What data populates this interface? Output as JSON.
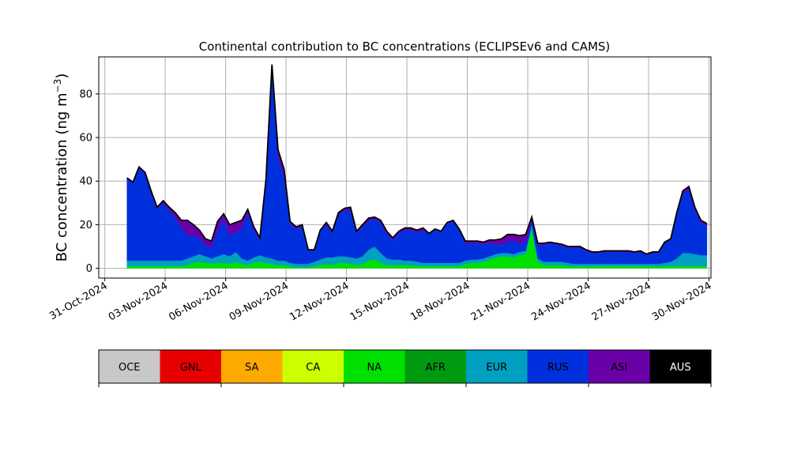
{
  "chart_data": {
    "type": "area",
    "stacked": true,
    "title": "Continental contribution to BC concentrations (ECLIPSEv6 and CAMS)",
    "ylabel_main": "BC concentration (ng m",
    "ylabel_sup": "−3",
    "ylabel_close": ")",
    "xlabel": "",
    "ylim": [
      -4.5,
      97
    ],
    "xlim": [
      -0.3,
      30.1
    ],
    "y_ticks": [
      0,
      20,
      40,
      60,
      80
    ],
    "y_tick_labels": [
      "0",
      "20",
      "40",
      "60",
      "80"
    ],
    "x_ticks": [
      0,
      3,
      6,
      9,
      12,
      15,
      18,
      21,
      24,
      27,
      30
    ],
    "x_tick_labels": [
      "31-Oct-2024",
      "03-Nov-2024",
      "06-Nov-2024",
      "09-Nov-2024",
      "12-Nov-2024",
      "15-Nov-2024",
      "18-Nov-2024",
      "21-Nov-2024",
      "24-Nov-2024",
      "27-Nov-2024",
      "30-Nov-2024"
    ],
    "grid": true,
    "x_unit": "days since 31-Oct-2024",
    "x": [
      1.1,
      1.4,
      1.7,
      2.0,
      2.3,
      2.6,
      2.9,
      3.2,
      3.5,
      3.8,
      4.1,
      4.4,
      4.7,
      5.0,
      5.3,
      5.6,
      5.9,
      6.2,
      6.5,
      6.8,
      7.1,
      7.4,
      7.7,
      8.0,
      8.3,
      8.6,
      8.9,
      9.2,
      9.5,
      9.8,
      10.1,
      10.4,
      10.7,
      11.0,
      11.3,
      11.6,
      11.9,
      12.2,
      12.5,
      12.8,
      13.1,
      13.4,
      13.7,
      14.0,
      14.3,
      14.6,
      14.9,
      15.2,
      15.5,
      15.8,
      16.1,
      16.4,
      16.7,
      17.0,
      17.3,
      17.6,
      17.9,
      18.2,
      18.5,
      18.8,
      19.1,
      19.4,
      19.7,
      20.0,
      20.3,
      20.6,
      20.9,
      21.2,
      21.5,
      21.8,
      22.1,
      22.4,
      22.7,
      23.0,
      23.3,
      23.6,
      23.9,
      24.2,
      24.5,
      24.8,
      25.1,
      25.4,
      25.7,
      26.0,
      26.3,
      26.6,
      26.9,
      27.2,
      27.5,
      27.8,
      28.1,
      28.4,
      28.7,
      29.0,
      29.3,
      29.6,
      29.9
    ],
    "series": [
      {
        "name": "NA",
        "color": "#00e000",
        "values": [
          1.0,
          1.0,
          1.0,
          1.0,
          1.0,
          1.0,
          1.0,
          1.0,
          1.0,
          1.0,
          1.5,
          2.5,
          3.0,
          2.5,
          2.0,
          2.5,
          2.5,
          2.0,
          3.0,
          2.0,
          1.5,
          2.5,
          3.0,
          2.5,
          2.0,
          1.5,
          1.5,
          1.0,
          0.5,
          0.5,
          0.5,
          1.0,
          1.5,
          2.0,
          1.5,
          2.5,
          2.5,
          2.0,
          1.5,
          2.0,
          3.5,
          4.0,
          2.5,
          1.5,
          1.5,
          1.5,
          1.5,
          1.5,
          1.0,
          1.0,
          1.0,
          1.0,
          1.0,
          1.0,
          1.0,
          1.0,
          2.0,
          2.5,
          2.5,
          3.0,
          4.0,
          5.0,
          5.5,
          5.5,
          5.0,
          6.0,
          6.5,
          18.0,
          3.0,
          1.5,
          1.5,
          1.5,
          1.5,
          1.0,
          1.0,
          1.0,
          1.0,
          1.0,
          1.0,
          1.0,
          1.0,
          1.0,
          1.0,
          1.0,
          1.0,
          1.0,
          1.0,
          1.0,
          1.0,
          1.0,
          1.0,
          1.0,
          1.0,
          1.0,
          1.0,
          1.0,
          1.0
        ]
      },
      {
        "name": "EUR",
        "color": "#00a0c0",
        "values": [
          2.5,
          2.5,
          2.5,
          2.5,
          2.5,
          2.5,
          2.5,
          2.5,
          2.5,
          2.5,
          3.0,
          3.0,
          3.5,
          3.0,
          2.5,
          3.0,
          4.0,
          3.5,
          4.5,
          2.5,
          2.0,
          2.5,
          3.0,
          2.5,
          2.5,
          2.0,
          2.0,
          1.5,
          1.5,
          1.5,
          1.5,
          2.0,
          2.5,
          3.0,
          3.5,
          3.0,
          3.0,
          3.0,
          3.0,
          3.5,
          5.0,
          6.0,
          4.5,
          3.0,
          2.5,
          2.5,
          2.0,
          2.0,
          2.0,
          1.5,
          1.5,
          1.5,
          1.5,
          1.5,
          1.5,
          1.5,
          1.5,
          1.5,
          1.5,
          1.5,
          1.5,
          1.5,
          1.5,
          1.5,
          1.5,
          1.5,
          1.5,
          2.0,
          1.5,
          1.5,
          1.5,
          1.5,
          1.5,
          1.5,
          1.0,
          1.0,
          1.0,
          1.0,
          1.0,
          1.0,
          1.0,
          1.0,
          1.0,
          1.0,
          1.0,
          1.0,
          1.0,
          1.0,
          1.0,
          1.5,
          2.0,
          3.5,
          6.0,
          6.0,
          5.5,
          5.0,
          5.0
        ]
      },
      {
        "name": "RUS",
        "color": "#0030dd",
        "values": [
          37.5,
          35.5,
          42.5,
          40.0,
          31.0,
          23.5,
          26.5,
          23.0,
          20.0,
          15.0,
          10.5,
          9.5,
          7.5,
          5.0,
          5.0,
          12.0,
          16.0,
          9.5,
          9.0,
          14.0,
          22.0,
          13.0,
          7.0,
          34.0,
          86.5,
          47.0,
          39.0,
          18.0,
          16.0,
          17.5,
          6.0,
          5.0,
          13.0,
          15.0,
          11.0,
          19.0,
          21.0,
          22.0,
          11.5,
          13.5,
          13.5,
          12.5,
          14.0,
          11.5,
          9.0,
          12.0,
          14.0,
          14.0,
          13.5,
          15.0,
          13.0,
          15.0,
          14.0,
          18.0,
          19.0,
          15.0,
          8.0,
          7.5,
          7.5,
          6.5,
          6.0,
          4.5,
          3.5,
          5.5,
          6.0,
          4.0,
          4.0,
          2.0,
          6.0,
          7.5,
          8.5,
          8.0,
          7.5,
          7.0,
          7.5,
          7.5,
          6.0,
          5.0,
          5.0,
          5.5,
          5.5,
          5.5,
          5.5,
          5.5,
          5.0,
          5.5,
          4.0,
          5.0,
          5.0,
          9.0,
          10.0,
          20.0,
          27.0,
          29.0,
          20.0,
          15.0,
          13.5
        ]
      },
      {
        "name": "ASI",
        "color": "#6a00a8",
        "values": [
          0.5,
          0.5,
          0.5,
          0.5,
          1.0,
          1.0,
          1.0,
          1.5,
          2.0,
          3.5,
          7.0,
          5.0,
          3.5,
          3.0,
          3.0,
          4.0,
          2.5,
          5.0,
          4.5,
          3.5,
          1.5,
          1.0,
          1.0,
          1.5,
          2.5,
          4.0,
          3.0,
          1.0,
          1.0,
          0.5,
          0.5,
          0.5,
          0.5,
          1.0,
          1.0,
          1.0,
          1.0,
          1.0,
          1.0,
          1.0,
          1.0,
          1.0,
          1.0,
          1.0,
          1.0,
          1.0,
          1.0,
          1.0,
          1.0,
          1.0,
          0.5,
          0.5,
          0.5,
          0.5,
          0.5,
          0.5,
          1.0,
          1.0,
          1.0,
          1.0,
          1.5,
          2.0,
          3.0,
          3.0,
          3.0,
          3.5,
          3.5,
          1.5,
          1.0,
          1.0,
          0.5,
          0.5,
          0.5,
          0.5,
          0.5,
          0.5,
          0.5,
          0.5,
          0.5,
          0.5,
          0.5,
          0.5,
          0.5,
          0.5,
          0.5,
          0.5,
          0.5,
          0.5,
          0.5,
          0.5,
          0.5,
          1.0,
          1.5,
          1.5,
          1.5,
          1.0,
          1.0
        ]
      }
    ],
    "colorbar": {
      "entries": [
        {
          "label": "OCE",
          "color": "#c8c8c8"
        },
        {
          "label": "GNL",
          "color": "#e60000"
        },
        {
          "label": "SA",
          "color": "#ffaa00"
        },
        {
          "label": "CA",
          "color": "#ccff00"
        },
        {
          "label": "NA",
          "color": "#00e000"
        },
        {
          "label": "AFR",
          "color": "#009a10"
        },
        {
          "label": "EUR",
          "color": "#00a0c0"
        },
        {
          "label": "RUS",
          "color": "#0030dd"
        },
        {
          "label": "ASI",
          "color": "#6a00a8"
        },
        {
          "label": "AUS",
          "color": "#000000"
        }
      ],
      "label_color_dark": "#000000",
      "label_color_light": "#ffffff"
    },
    "total_line_color": "#000000",
    "grid_color": "#b0b0b0"
  }
}
